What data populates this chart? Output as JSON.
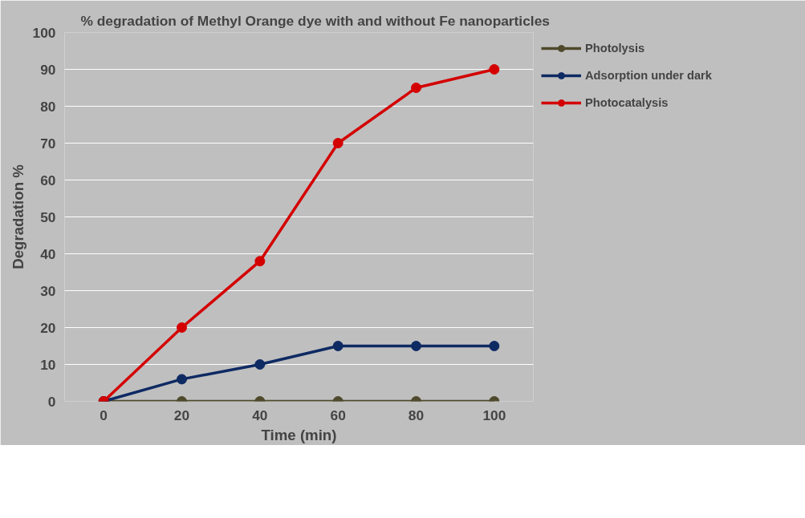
{
  "chart_data": {
    "type": "line",
    "title": "% degradation of Methyl Orange dye with and without Fe nanoparticles",
    "xlabel": "Time (min)",
    "ylabel": "Degradation %",
    "categories": [
      "0",
      "20",
      "40",
      "60",
      "80",
      "100"
    ],
    "series": [
      {
        "name": "Photolysis",
        "color": "#4f4a2c",
        "values": [
          0,
          0,
          0,
          0,
          0,
          0
        ]
      },
      {
        "name": "Adsorption under dark",
        "color": "#0e2a63",
        "values": [
          0,
          6,
          10,
          15,
          15,
          15
        ]
      },
      {
        "name": "Photocatalysis",
        "color": "#d40000",
        "values": [
          0,
          20,
          38,
          70,
          85,
          90
        ]
      }
    ],
    "ylim": [
      0,
      100
    ],
    "yticks": [
      0,
      10,
      20,
      30,
      40,
      50,
      60,
      70,
      80,
      90,
      100
    ],
    "grid": "y",
    "legend": "right",
    "marker": "circle",
    "line_style": "solid"
  }
}
